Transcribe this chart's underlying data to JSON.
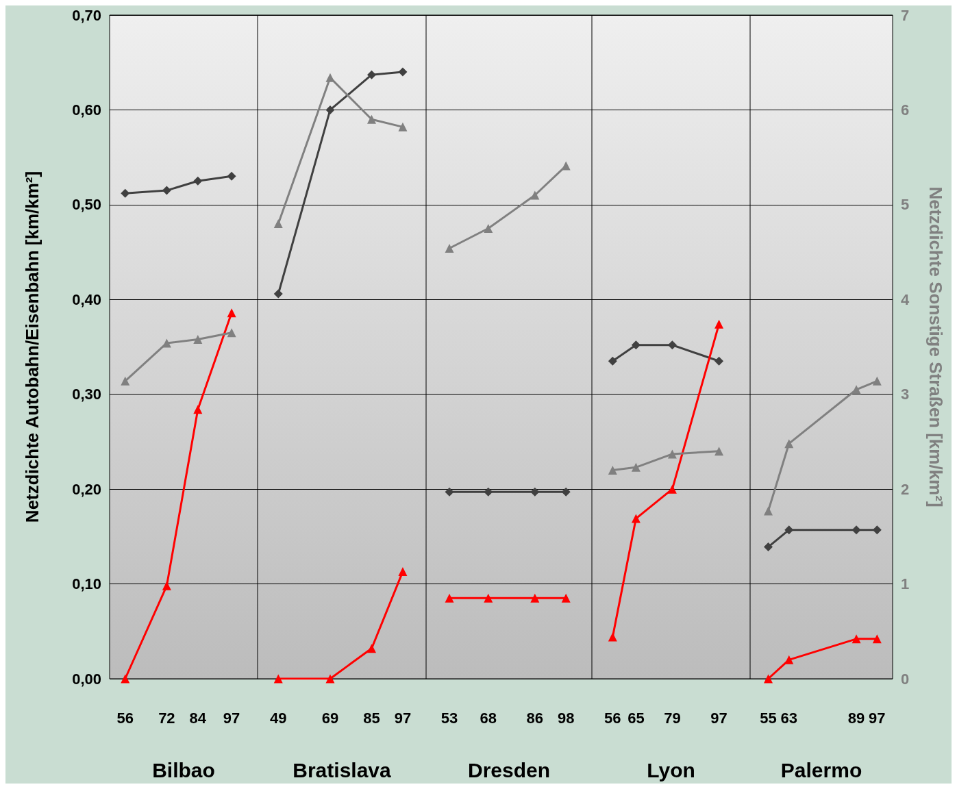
{
  "chart_data": [
    {
      "type": "line",
      "xlabel": "Bilbao",
      "ylabel": "Netzdichte Autobahn/Eisenbahn [km/km²]",
      "grid": "y",
      "x": [
        56,
        72,
        84,
        97
      ],
      "xlim": [
        50,
        107
      ],
      "xticks": [
        56,
        72,
        84,
        97
      ],
      "ylim": [
        0,
        0.7
      ],
      "yticks": [
        {
          "value": 0,
          "label": "0,00"
        },
        {
          "value": 0.1,
          "label": "0,10"
        },
        {
          "value": 0.2,
          "label": "0,20"
        },
        {
          "value": 0.3,
          "label": "0,30"
        },
        {
          "value": 0.4,
          "label": "0,40"
        },
        {
          "value": 0.5,
          "label": "0,50"
        },
        {
          "value": 0.6,
          "label": "0,60"
        },
        {
          "value": 0.7,
          "label": "0,70"
        }
      ],
      "y2lim": [
        0,
        7
      ],
      "series": [
        {
          "color": "#404040",
          "marker": "diamond",
          "values": [
            0.512,
            0.515,
            0.525,
            0.53
          ]
        },
        {
          "color": "#ff0000",
          "marker": "triangle",
          "values": [
            0,
            0.098,
            0.284,
            0.386
          ]
        },
        {
          "color": "#808080",
          "marker": "triangle",
          "axis": "y2",
          "values": [
            3.14,
            3.54,
            3.58,
            3.65
          ]
        }
      ]
    },
    {
      "type": "line",
      "xlabel": "Bratislava",
      "tick_labels": "x",
      "grid": "y",
      "x": [
        49,
        69,
        85,
        97
      ],
      "xlim": [
        41,
        106
      ],
      "xticks": [
        49,
        69,
        85,
        97
      ],
      "ylim": [
        0,
        0.7
      ],
      "y2lim": [
        0,
        7
      ],
      "series": [
        {
          "color": "#404040",
          "marker": "diamond",
          "values": [
            0.406,
            0.6,
            0.637,
            0.64
          ]
        },
        {
          "color": "#ff0000",
          "marker": "triangle",
          "values": [
            0,
            0,
            0.032,
            0.113
          ]
        },
        {
          "color": "#808080",
          "marker": "triangle",
          "axis": "y2",
          "values": [
            4.8,
            6.34,
            5.9,
            5.82
          ]
        }
      ]
    },
    {
      "type": "line",
      "xlabel": "Dresden",
      "tick_labels": "x",
      "grid": "y",
      "x": [
        53,
        68,
        86,
        98
      ],
      "xlim": [
        44,
        108
      ],
      "xticks": [
        53,
        68,
        86,
        98
      ],
      "ylim": [
        0,
        0.7
      ],
      "y2lim": [
        0,
        7
      ],
      "series": [
        {
          "color": "#404040",
          "marker": "diamond",
          "values": [
            0.197,
            0.197,
            0.197,
            0.197
          ]
        },
        {
          "color": "#ff0000",
          "marker": "triangle",
          "values": [
            0.085,
            0.085,
            0.085,
            0.085
          ]
        },
        {
          "color": "#808080",
          "marker": "triangle",
          "axis": "y2",
          "values": [
            4.54,
            4.75,
            5.1,
            5.41
          ]
        }
      ]
    },
    {
      "type": "line",
      "xlabel": "Lyon",
      "tick_labels": "x",
      "grid": "y",
      "x": [
        56,
        65,
        79,
        97
      ],
      "xlim": [
        48,
        109
      ],
      "xticks": [
        56,
        65,
        79,
        97
      ],
      "ylim": [
        0,
        0.7
      ],
      "y2lim": [
        0,
        7
      ],
      "series": [
        {
          "color": "#404040",
          "marker": "diamond",
          "values": [
            0.335,
            0.352,
            0.352,
            0.335
          ]
        },
        {
          "color": "#ff0000",
          "marker": "triangle",
          "values": [
            0.044,
            0.169,
            0.2,
            0.374
          ]
        },
        {
          "color": "#808080",
          "marker": "triangle",
          "axis": "y2",
          "values": [
            2.2,
            2.23,
            2.37,
            2.4
          ]
        }
      ]
    },
    {
      "type": "line",
      "xlabel": "Palermo",
      "y2label": "Netzdichte Sonstige Straßen [km/km²]",
      "grid": "y",
      "x": [
        55,
        63,
        89,
        97
      ],
      "xlim": [
        48,
        103
      ],
      "xticks": [
        55,
        63,
        89,
        97
      ],
      "ylim": [
        0,
        0.7
      ],
      "y2lim": [
        0,
        7
      ],
      "y2ticks": [
        0,
        1,
        2,
        3,
        4,
        5,
        6,
        7
      ],
      "series": [
        {
          "color": "#404040",
          "marker": "diamond",
          "values": [
            0.139,
            0.157,
            0.157,
            0.157
          ]
        },
        {
          "color": "#ff0000",
          "marker": "triangle",
          "values": [
            0,
            0.02,
            0.042,
            0.042
          ]
        },
        {
          "color": "#808080",
          "marker": "triangle",
          "axis": "y2",
          "values": [
            1.77,
            2.48,
            3.05,
            3.14
          ]
        }
      ]
    }
  ]
}
